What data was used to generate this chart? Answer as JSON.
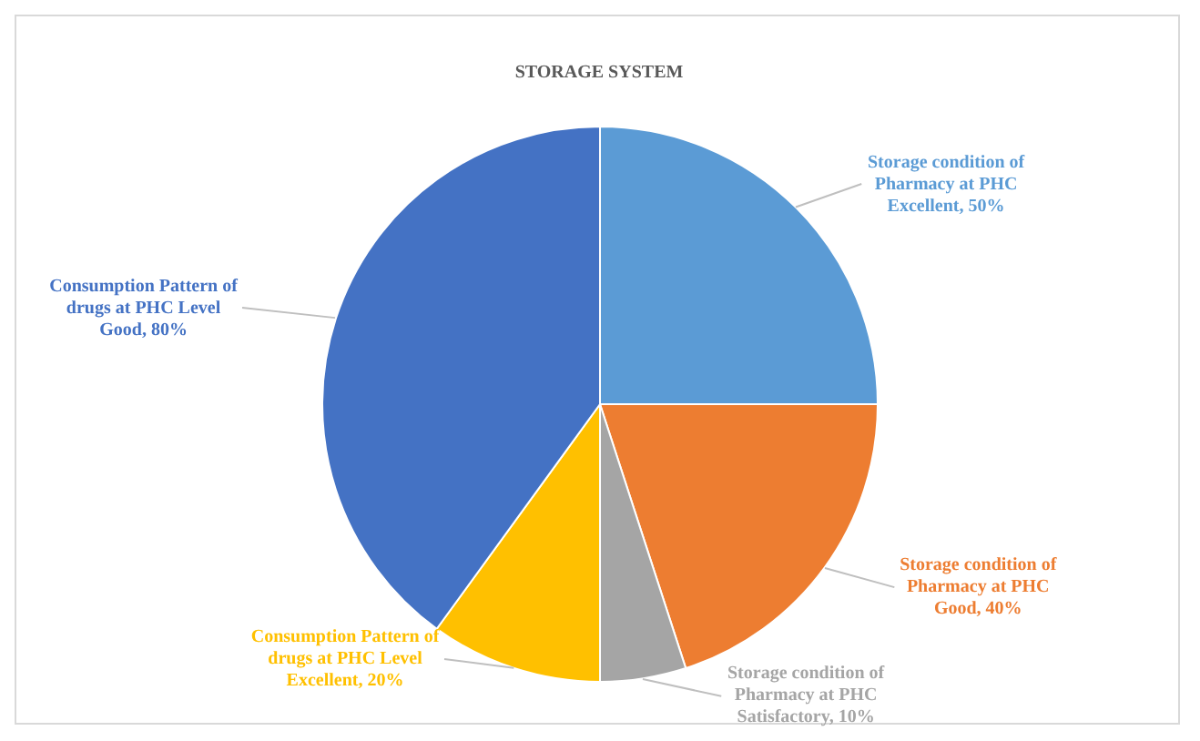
{
  "chart_data": {
    "type": "pie",
    "title": "STORAGE SYSTEM",
    "categories": [
      "Storage condition of Pharmacy at PHC Excellent",
      "Storage condition of Pharmacy at PHC Good",
      "Storage condition of Pharmacy at PHC Satisfactory",
      "Consumption Pattern of drugs at PHC Level Excellent",
      "Consumption Pattern of drugs at PHC Level Good"
    ],
    "values": [
      50,
      40,
      10,
      20,
      80
    ],
    "value_labels": [
      "50%",
      "40%",
      "10%",
      "20%",
      "80%"
    ],
    "colors": [
      "#5b9bd5",
      "#ed7d31",
      "#a5a5a5",
      "#ffc000",
      "#4472c4"
    ],
    "legend": false
  }
}
